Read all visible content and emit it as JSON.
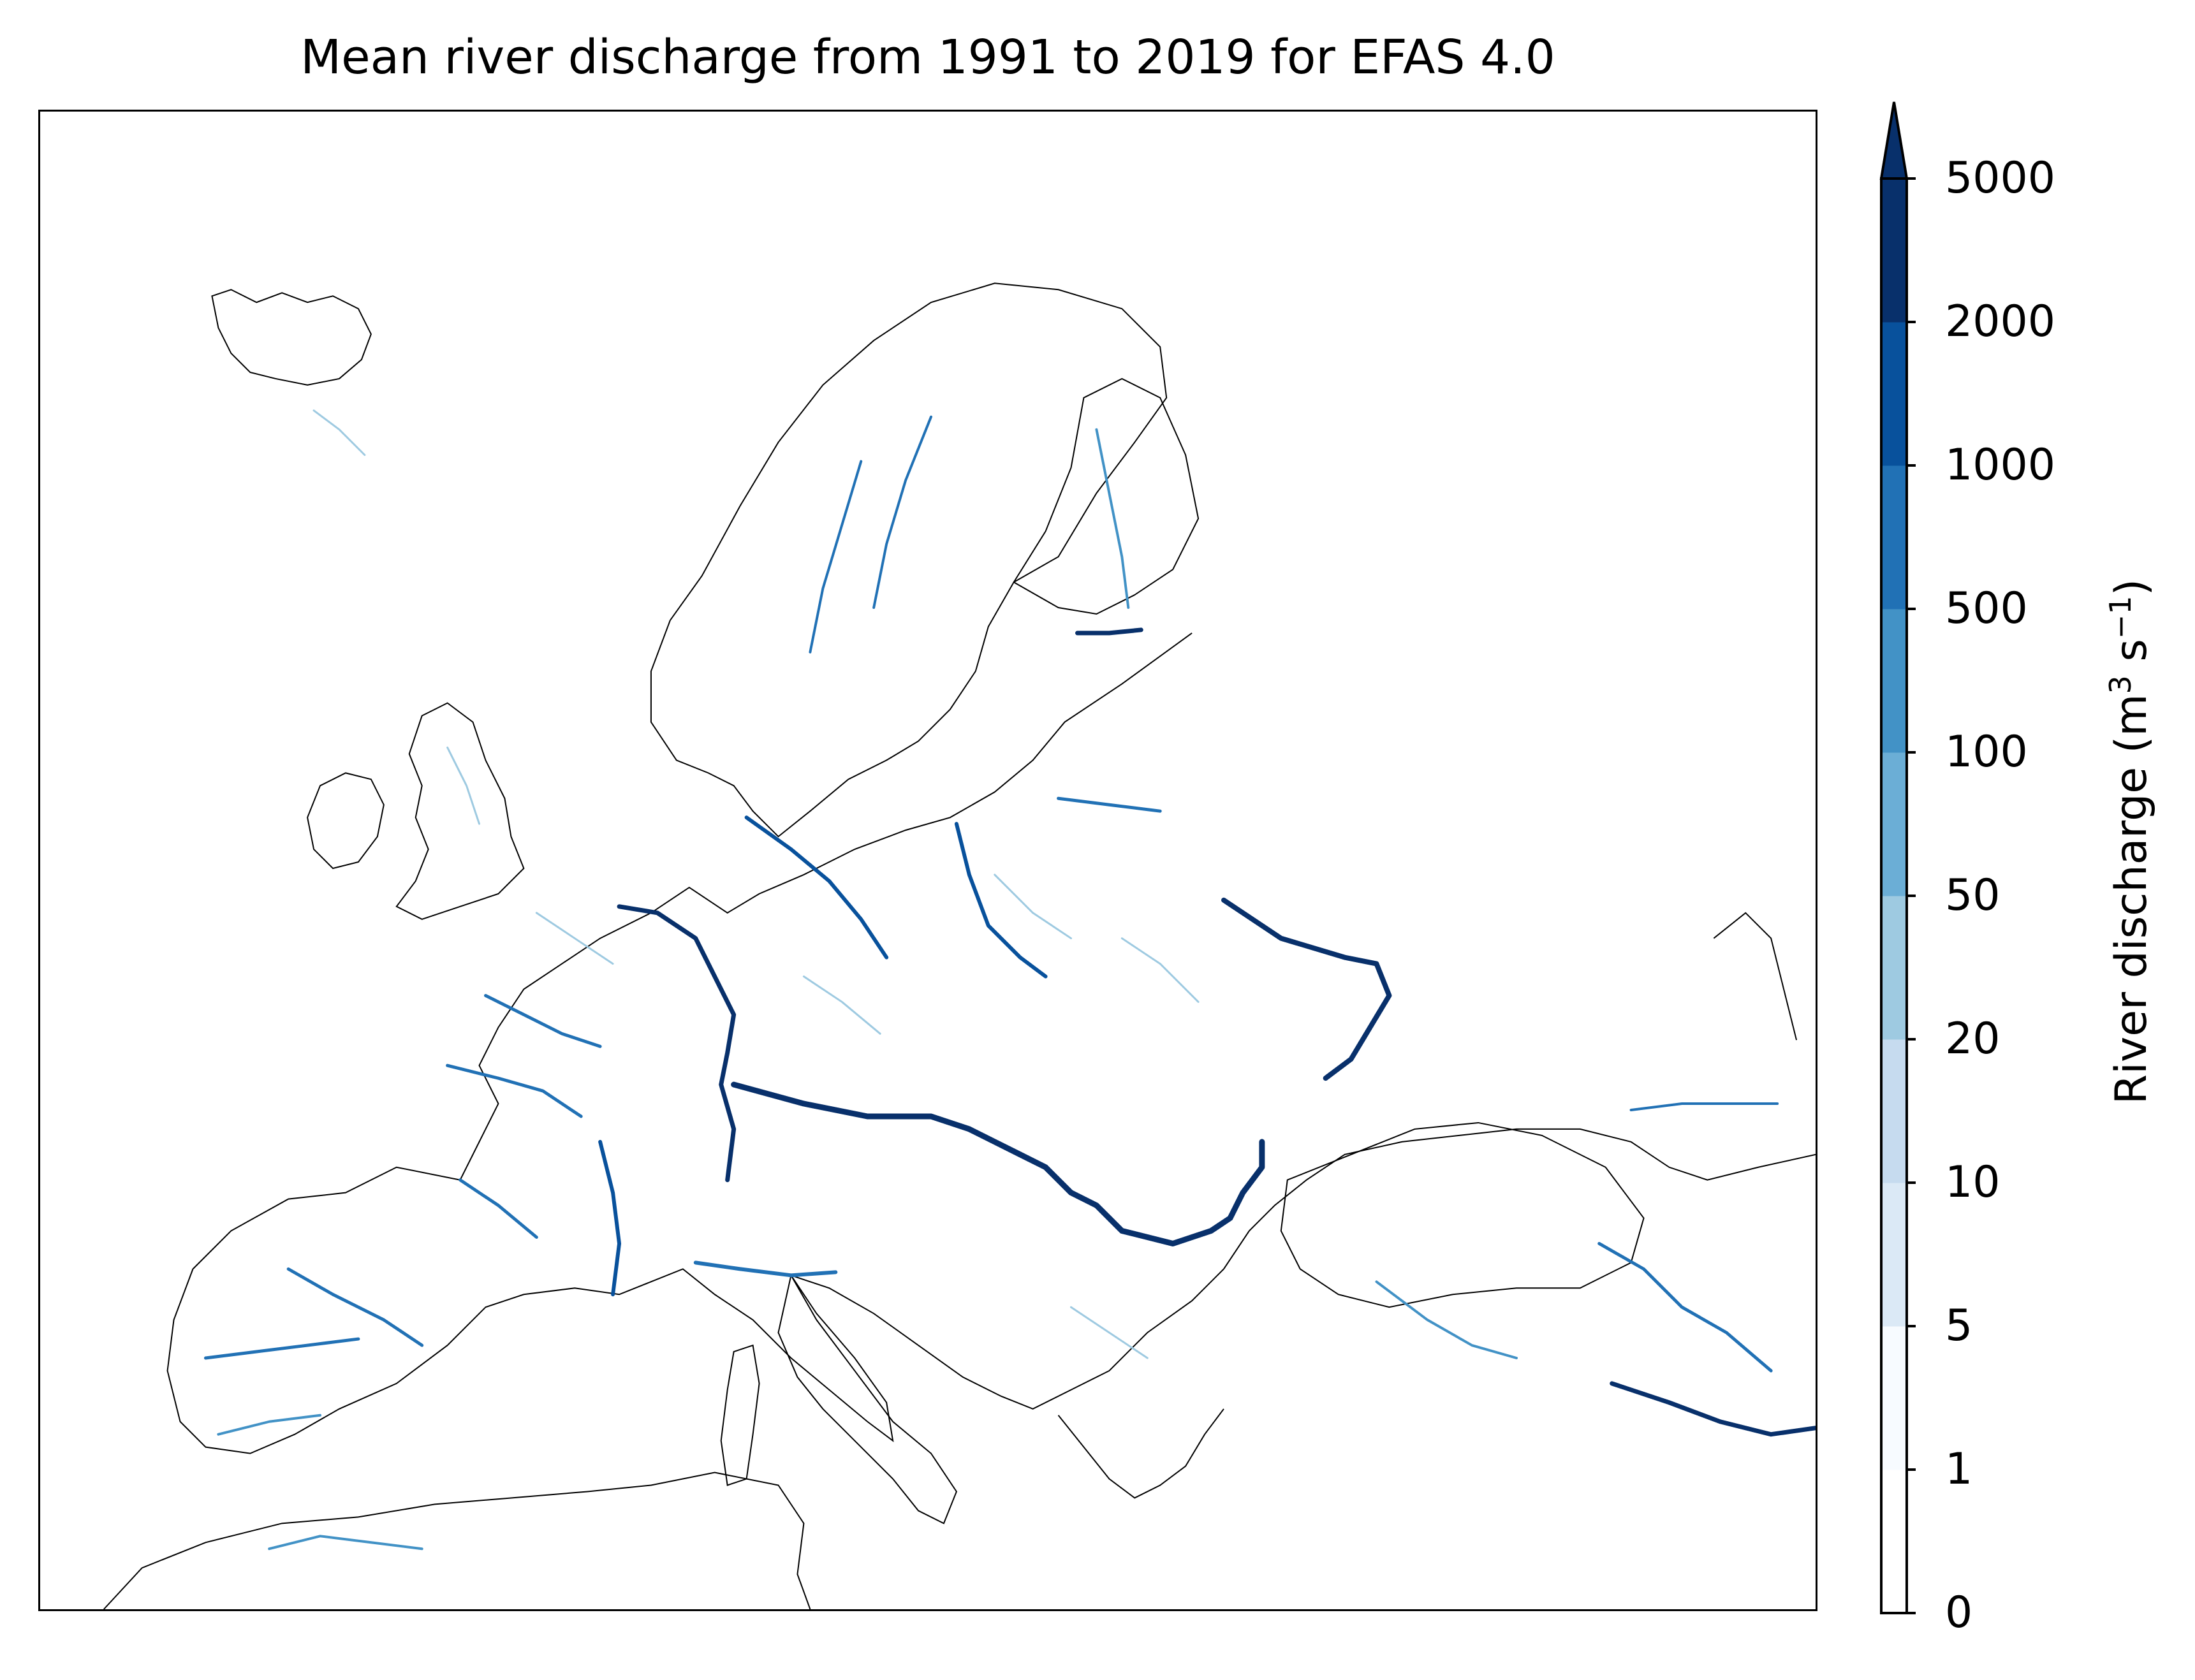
{
  "title": "Mean river discharge from 1991 to 2019 for EFAS 4.0",
  "colorbar": {
    "label_prefix": "River discharge (m",
    "label_sup1": "3",
    "label_mid": " s",
    "label_sup2": "−1",
    "label_suffix": ")",
    "ticks": [
      "0",
      "1",
      "5",
      "10",
      "20",
      "50",
      "100",
      "500",
      "1000",
      "2000",
      "5000"
    ],
    "colors": [
      "#ffffff",
      "#f7fbff",
      "#dbe9f6",
      "#c6dbef",
      "#9ecae1",
      "#6baed6",
      "#4292c6",
      "#2171b5",
      "#08519c",
      "#08306b"
    ],
    "extend": "max"
  },
  "map": {
    "coastline_color": "#000000",
    "land_fill": "#ffffff",
    "river_palette": [
      "#f7fbff",
      "#c6dbef",
      "#9ecae1",
      "#6baed6",
      "#4292c6",
      "#2171b5",
      "#08519c",
      "#08306b"
    ]
  }
}
